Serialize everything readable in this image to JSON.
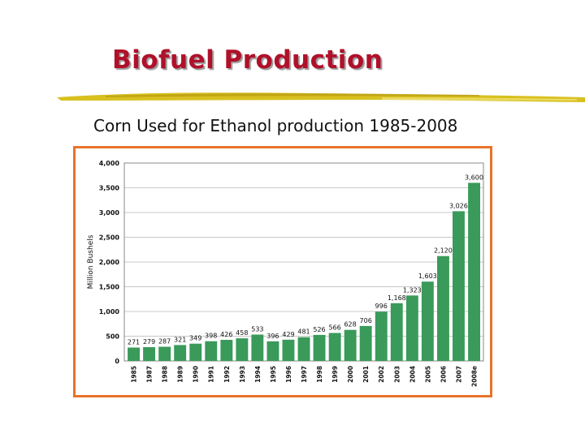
{
  "slide": {
    "title": "Biofuel Production",
    "subtitle": "Corn Used for Ethanol production 1985-2008"
  },
  "colors": {
    "title": "#b0102a",
    "frame": "#e8732a",
    "bar": "#3a9a5a",
    "grid": "#c8c8c8"
  },
  "chart_data": {
    "type": "bar",
    "ylabel": "Million Bushels",
    "ylim": [
      0,
      4000
    ],
    "yticks": [
      0,
      500,
      1000,
      1500,
      2000,
      2500,
      3000,
      3500,
      4000
    ],
    "ytick_labels": [
      "0",
      "500",
      "1,000",
      "1,500",
      "2,000",
      "2,500",
      "3,000",
      "3,500",
      "4,000"
    ],
    "grid": true,
    "categories": [
      "1985",
      "1987",
      "1988",
      "1989",
      "1990",
      "1991",
      "1992",
      "1993",
      "1994",
      "1995",
      "1996",
      "1997",
      "1998",
      "1999",
      "2000",
      "2001",
      "2002",
      "2003",
      "2004",
      "2005",
      "2006",
      "2007",
      "2008e"
    ],
    "values": [
      271,
      279,
      287,
      321,
      349,
      398,
      426,
      458,
      533,
      396,
      429,
      481,
      526,
      566,
      628,
      706,
      996,
      1168,
      1323,
      1603,
      2120,
      3026,
      3600
    ],
    "data_labels": [
      "271",
      "279",
      "287",
      "321",
      "349",
      "398",
      "426",
      "458",
      "533",
      "396",
      "429",
      "481",
      "526",
      "566",
      "628",
      "706",
      "996",
      "1,168",
      "1,323",
      "1,603",
      "2,120",
      "3,026",
      "3,600"
    ]
  }
}
